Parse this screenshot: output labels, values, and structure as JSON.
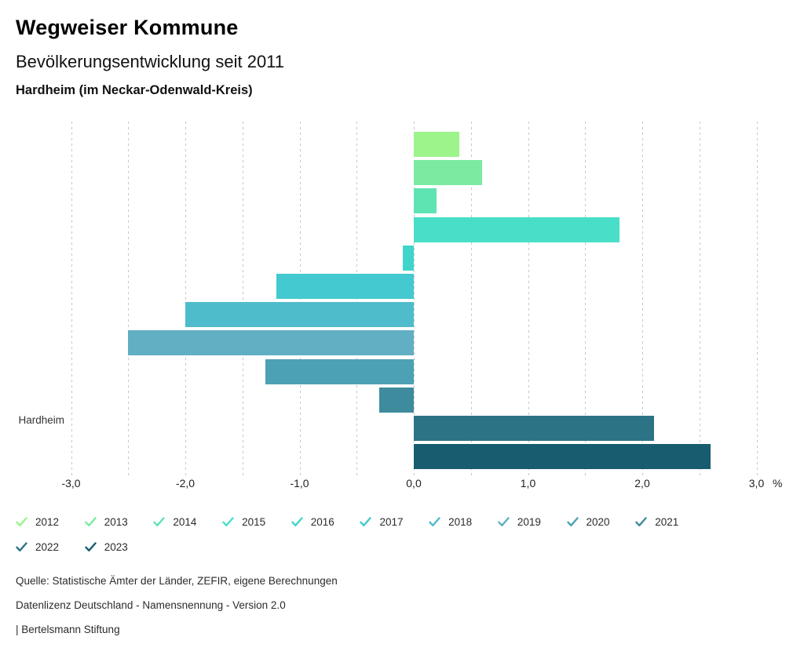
{
  "header": {
    "title": "Wegweiser Kommune",
    "subtitle": "Bevölkerungsentwicklung seit 2011",
    "location": "Hardheim (im Neckar-Odenwald-Kreis)"
  },
  "chart_data": {
    "type": "bar",
    "orientation": "horizontal",
    "title": "Bevölkerungsentwicklung seit 2011",
    "row_label": "Hardheim",
    "unit": "%",
    "categories": [
      "2012",
      "2013",
      "2014",
      "2015",
      "2016",
      "2017",
      "2018",
      "2019",
      "2020",
      "2021",
      "2022",
      "2023"
    ],
    "values": [
      0.4,
      0.6,
      0.2,
      1.8,
      -0.1,
      -1.2,
      -2.0,
      -2.5,
      -1.3,
      -0.3,
      2.1,
      2.6
    ],
    "colors": [
      "#9CF48B",
      "#7AEBA0",
      "#5EE4B3",
      "#49DEC7",
      "#3FD5CB",
      "#43C9CF",
      "#4FBCCB",
      "#61AFC3",
      "#4CA1B4",
      "#3E8B9E",
      "#2D7386",
      "#175D6F"
    ],
    "xlim": [
      -3.0,
      3.0
    ],
    "gridline_step": 0.5,
    "grid": true,
    "x_tick_labels": [
      "-3,0",
      "-2,0",
      "-1,0",
      "0,0",
      "1,0",
      "2,0",
      "3,0"
    ],
    "x_tick_values": [
      -3,
      -2,
      -1,
      0,
      1,
      2,
      3
    ],
    "legend_position": "bottom"
  },
  "legend": {
    "items": [
      {
        "year": "2012",
        "color": "#9CF48B"
      },
      {
        "year": "2013",
        "color": "#7AEBA0"
      },
      {
        "year": "2014",
        "color": "#5EE4B3"
      },
      {
        "year": "2015",
        "color": "#49DEC7"
      },
      {
        "year": "2016",
        "color": "#3FD5CB"
      },
      {
        "year": "2017",
        "color": "#43C9CF"
      },
      {
        "year": "2018",
        "color": "#4FBCCB"
      },
      {
        "year": "2019",
        "color": "#61AFC3"
      },
      {
        "year": "2020",
        "color": "#4CA1B4"
      },
      {
        "year": "2021",
        "color": "#3E8B9E"
      },
      {
        "year": "2022",
        "color": "#2D7386"
      },
      {
        "year": "2023",
        "color": "#175D6F"
      }
    ]
  },
  "footer": {
    "source": "Quelle: Statistische Ämter der Länder, ZEFIR, eigene Berechnungen",
    "license": "Datenlizenz Deutschland - Namensnennung - Version 2.0",
    "attribution": "| Bertelsmann Stiftung"
  }
}
